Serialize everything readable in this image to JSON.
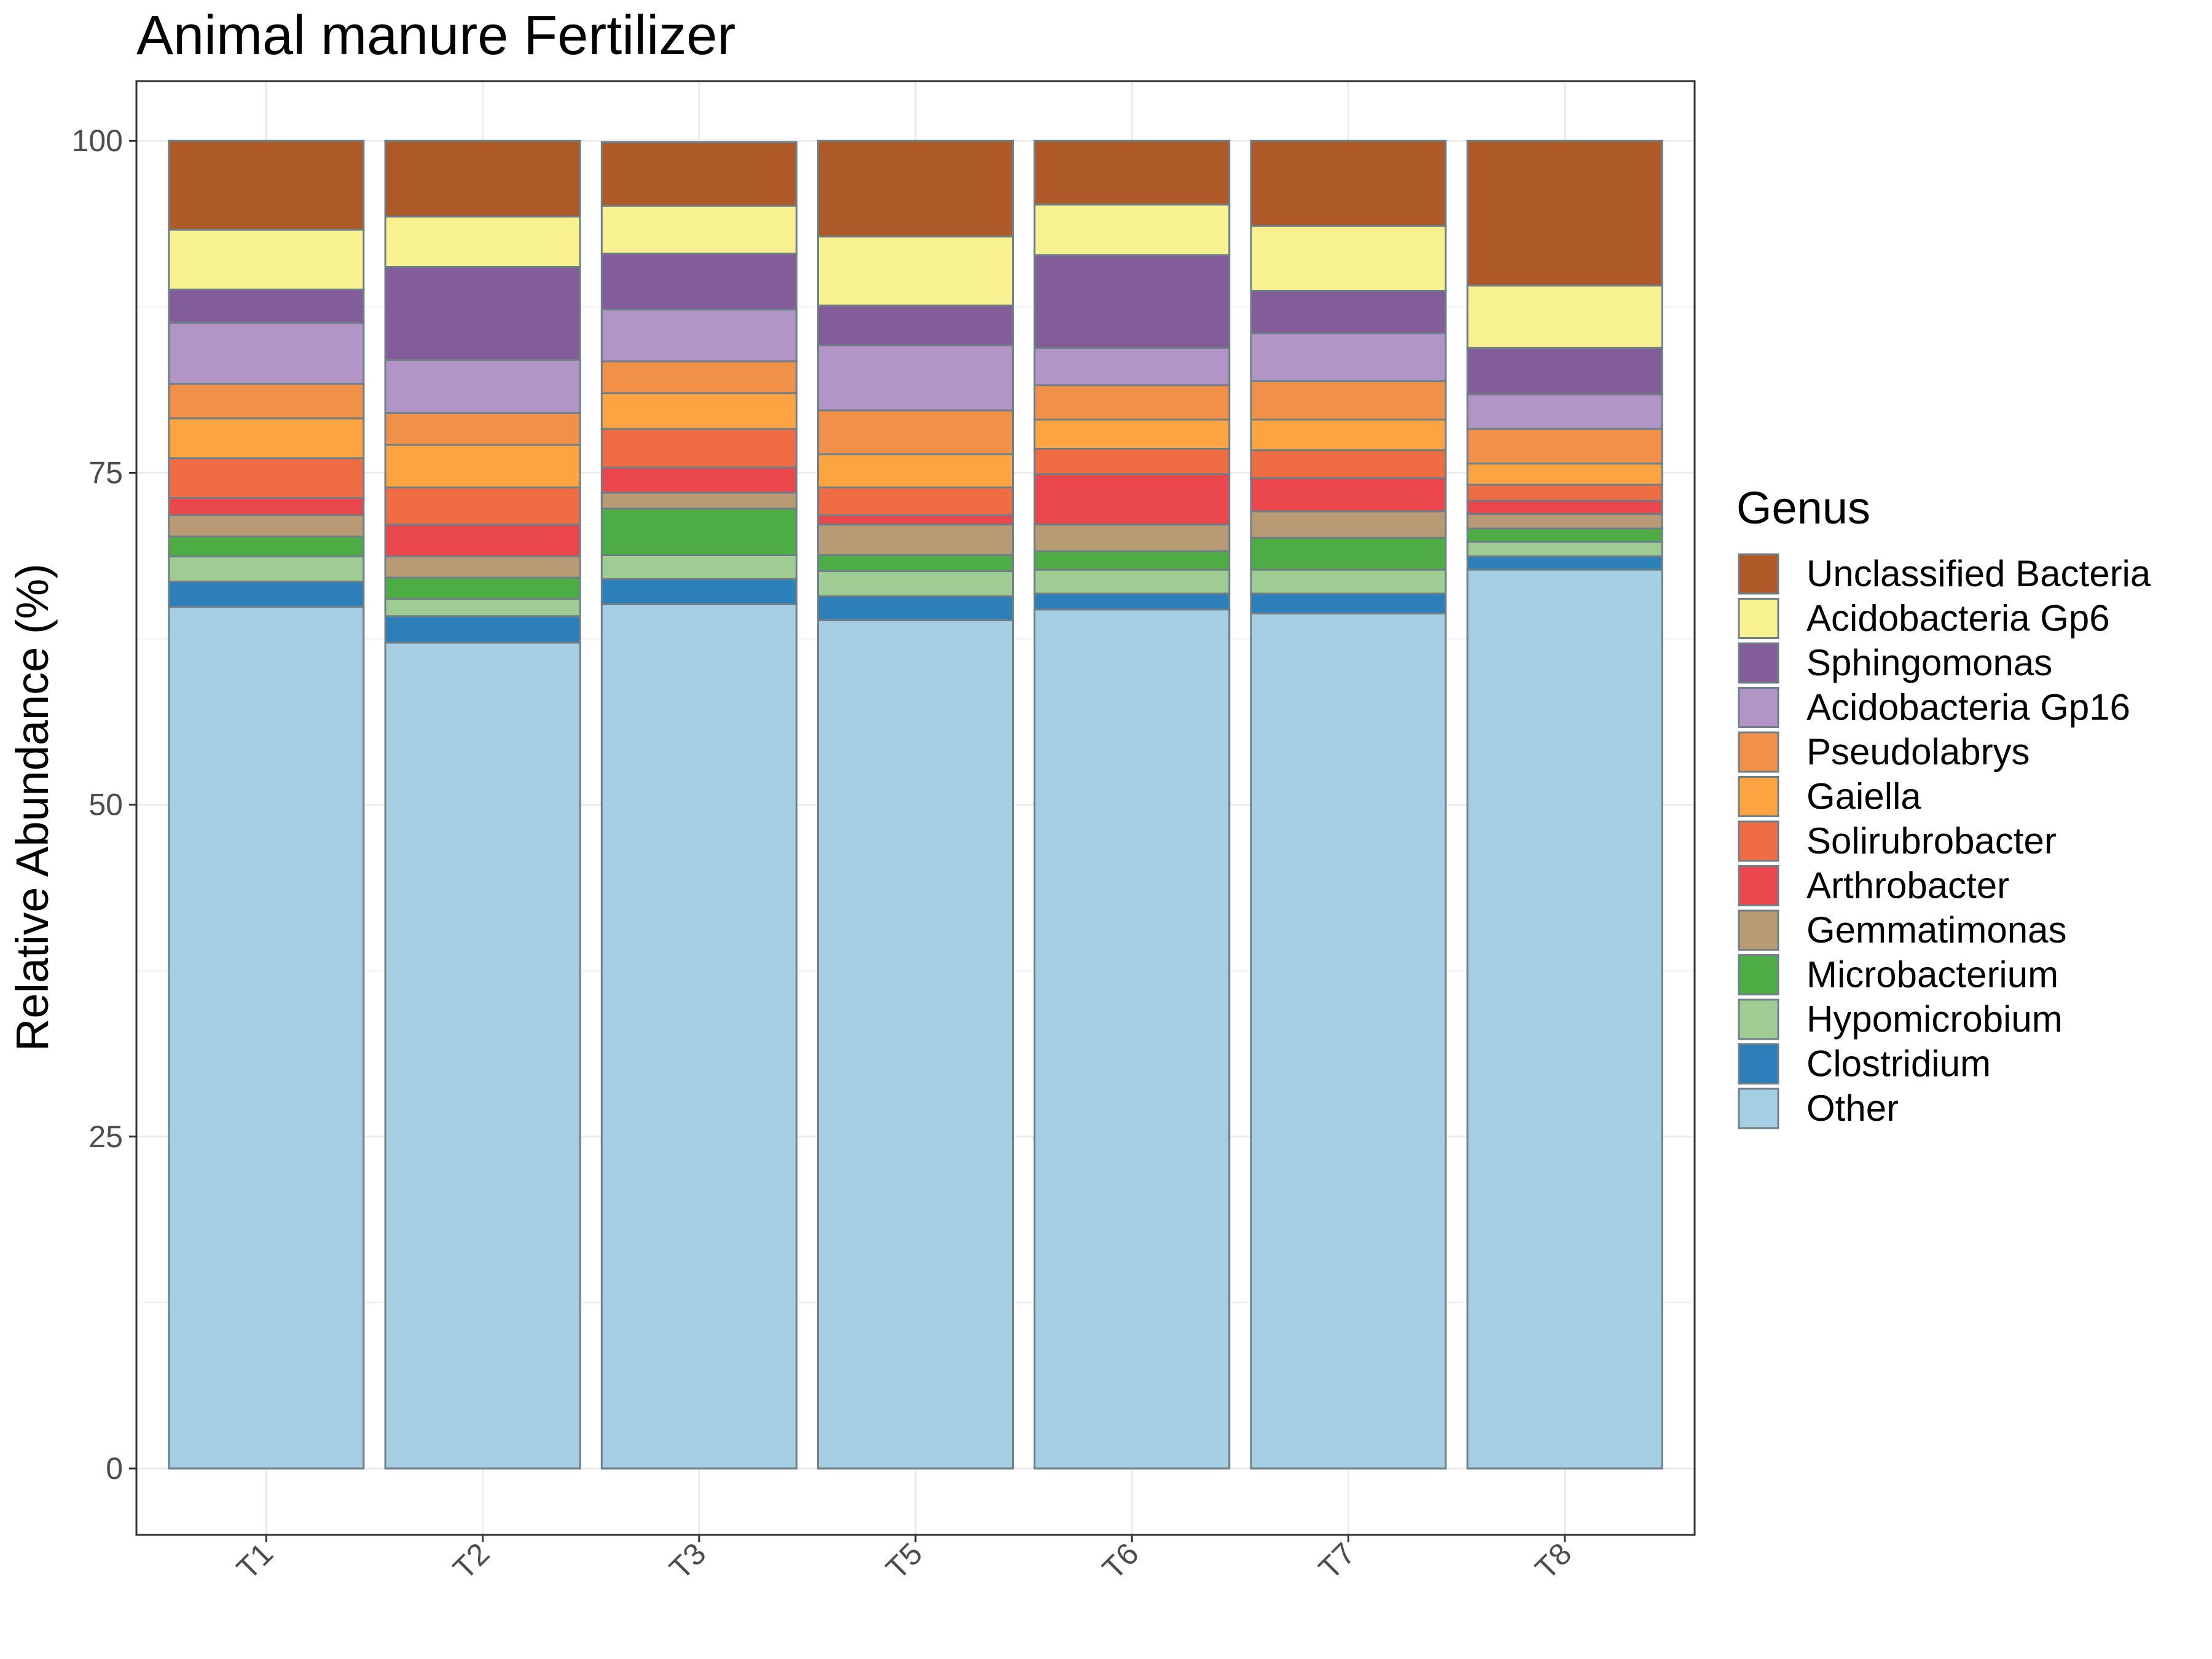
{
  "chart_data": {
    "type": "bar",
    "stacked": true,
    "title": "Animal manure Fertilizer",
    "xlabel": "",
    "ylabel": "Relative Abundance (%)",
    "ylim": [
      -5,
      104.5
    ],
    "yticks": [
      0,
      25,
      50,
      75,
      100
    ],
    "grid": true,
    "legend": {
      "title": "Genus",
      "position": "right"
    },
    "categories": [
      "T1",
      "T2",
      "T3",
      "T5",
      "T6",
      "T7",
      "T8"
    ],
    "series": [
      {
        "name": "Other",
        "color": "#A6CEE3",
        "values": [
          64.9,
          62.2,
          65.1,
          63.9,
          64.7,
          64.4,
          67.7
        ]
      },
      {
        "name": "Clostridium",
        "color": "#2C7FB8",
        "values": [
          1.9,
          2.0,
          1.9,
          1.8,
          1.2,
          1.5,
          1.0
        ]
      },
      {
        "name": "Hypomicrobium",
        "color": "#9ECC92",
        "values": [
          1.9,
          1.3,
          1.8,
          1.9,
          1.8,
          1.8,
          1.1
        ]
      },
      {
        "name": "Microbacterium",
        "color": "#4DAD44",
        "values": [
          1.5,
          1.6,
          3.5,
          1.2,
          1.4,
          2.4,
          1.0
        ]
      },
      {
        "name": "Gemmatimonas",
        "color": "#B89B74",
        "values": [
          1.6,
          1.6,
          1.2,
          2.3,
          2.0,
          2.0,
          1.1
        ]
      },
      {
        "name": "Arthrobacter",
        "color": "#E9474C",
        "values": [
          1.3,
          2.4,
          1.9,
          0.7,
          3.8,
          2.5,
          1.0
        ]
      },
      {
        "name": "Solirubrobacter",
        "color": "#F06D44",
        "values": [
          3.0,
          2.8,
          2.9,
          2.1,
          1.9,
          2.1,
          1.2
        ]
      },
      {
        "name": "Gaiella",
        "color": "#FDA442",
        "values": [
          3.0,
          3.2,
          2.7,
          2.5,
          2.2,
          2.3,
          1.6
        ]
      },
      {
        "name": "Pseudolabrys",
        "color": "#F09049",
        "values": [
          2.6,
          2.4,
          2.4,
          3.3,
          2.6,
          2.9,
          2.6
        ]
      },
      {
        "name": "Acidobacteria Gp16",
        "color": "#B195C7",
        "values": [
          4.6,
          4.0,
          3.9,
          4.9,
          2.8,
          3.6,
          2.6
        ]
      },
      {
        "name": "Sphingomonas",
        "color": "#835C9A",
        "values": [
          2.5,
          7.0,
          4.2,
          3.0,
          7.0,
          3.2,
          3.5
        ]
      },
      {
        "name": "Acidobacteria Gp6",
        "color": "#F7F28F",
        "values": [
          4.5,
          3.8,
          3.6,
          5.2,
          3.8,
          4.9,
          4.7
        ]
      },
      {
        "name": "Unclassified Bacteria",
        "color": "#AE5928",
        "values": [
          6.7,
          5.7,
          4.8,
          7.2,
          4.8,
          6.4,
          10.9
        ]
      }
    ]
  }
}
